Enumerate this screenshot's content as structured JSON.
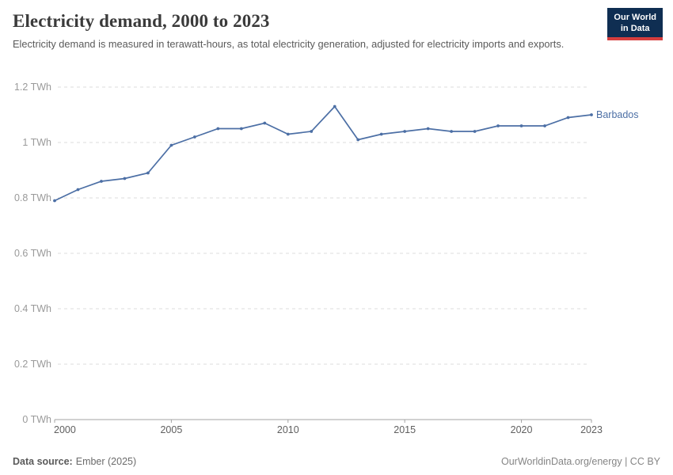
{
  "header": {
    "title": "Electricity demand, 2000 to 2023",
    "subtitle": "Electricity demand is measured in terawatt-hours, as total electricity generation, adjusted for electricity imports and exports.",
    "logo": {
      "line1": "Our World",
      "line2": "in Data",
      "bg_color": "#0f2e52",
      "accent_color": "#d63e3e"
    }
  },
  "chart_data": {
    "type": "line",
    "title": "Electricity demand, 2000 to 2023",
    "unit": "TWh",
    "xlabel": "",
    "ylabel": "",
    "xlim": [
      2000,
      2023
    ],
    "ylim": [
      0,
      1.2
    ],
    "xticks": [
      2000,
      2005,
      2010,
      2015,
      2020,
      2023
    ],
    "yticks": [
      0,
      0.2,
      0.4,
      0.6,
      0.8,
      1,
      1.2
    ],
    "ytick_labels": [
      "0 TWh",
      "0.2 TWh",
      "0.4 TWh",
      "0.6 TWh",
      "0.8 TWh",
      "1 TWh",
      "1.2 TWh"
    ],
    "grid": "horizontal-dashed",
    "grid_color": "#dcdcdc",
    "axis_color": "#a3a3a3",
    "legend_position": "end-of-line-label",
    "series": [
      {
        "name": "Barbados",
        "color": "#4c6fa5",
        "x": [
          2000,
          2001,
          2002,
          2003,
          2004,
          2005,
          2006,
          2007,
          2008,
          2009,
          2010,
          2011,
          2012,
          2013,
          2014,
          2015,
          2016,
          2017,
          2018,
          2019,
          2020,
          2021,
          2022,
          2023
        ],
        "values": [
          0.79,
          0.83,
          0.86,
          0.87,
          0.89,
          0.99,
          1.02,
          1.05,
          1.05,
          1.07,
          1.03,
          1.04,
          1.13,
          1.01,
          1.03,
          1.04,
          1.05,
          1.04,
          1.04,
          1.06,
          1.06,
          1.06,
          1.09,
          1.1
        ]
      }
    ]
  },
  "footer": {
    "source_label": "Data source:",
    "source_value": "Ember (2025)",
    "credit": "OurWorldinData.org/energy | CC BY"
  }
}
